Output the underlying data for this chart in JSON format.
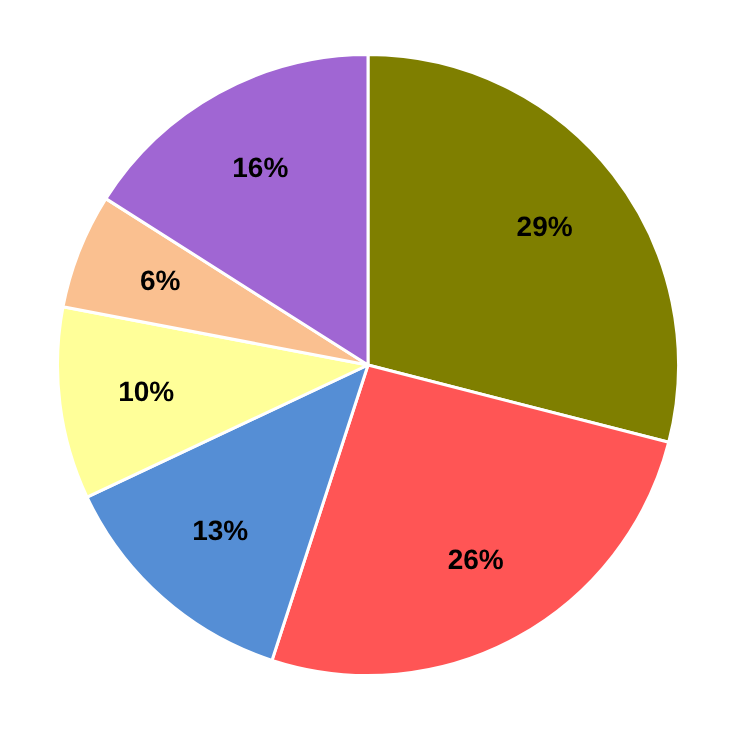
{
  "chart_data": {
    "type": "pie",
    "categories": [
      null,
      null,
      null,
      null,
      null,
      null
    ],
    "values": [
      29,
      26,
      13,
      10,
      6,
      16
    ],
    "colors": [
      "#7f7f00",
      "#ff5555",
      "#558ed5",
      "#ffff99",
      "#fac090",
      "#a066d3"
    ],
    "value_labels": [
      "29%",
      "26%",
      "13%",
      "10%",
      "6%",
      "16%"
    ],
    "legend": false
  }
}
